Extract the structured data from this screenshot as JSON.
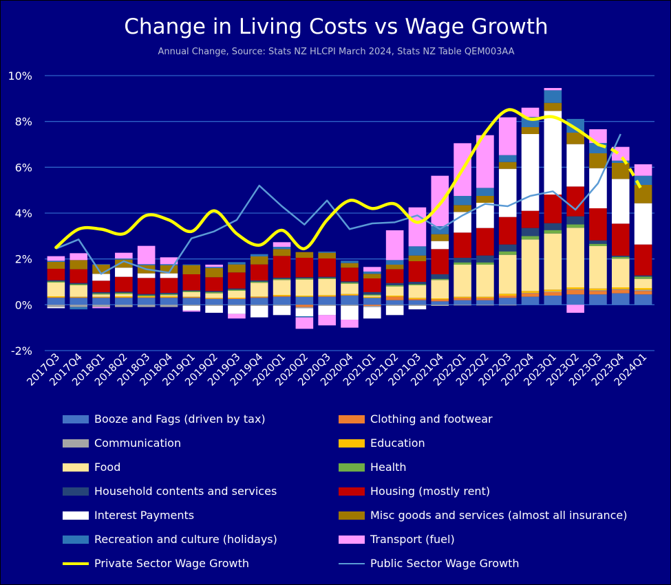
{
  "chart_data": {
    "type": "bar",
    "stacked": true,
    "title": "Change in Living Costs vs Wage Growth",
    "subtitle": "Annual Change, Source: Stats NZ HLCPI March 2024, Stats NZ Table QEM003AA",
    "xlabel": "",
    "ylabel": "",
    "ylim": [
      -2,
      10
    ],
    "y_ticks": [
      -2,
      0,
      2,
      4,
      6,
      8,
      10
    ],
    "y_tick_labels": [
      "-2%",
      "0%",
      "2%",
      "4%",
      "6%",
      "8%",
      "10%"
    ],
    "grid": true,
    "legend_position": "bottom",
    "categories": [
      "2017Q3",
      "2017Q4",
      "2018Q1",
      "2018Q2",
      "2018Q3",
      "2018Q4",
      "2019Q1",
      "2019Q2",
      "2019Q3",
      "2019Q4",
      "2020Q1",
      "2020Q2",
      "2020Q3",
      "2020Q4",
      "2021Q1",
      "2021Q2",
      "2021Q3",
      "2021Q4",
      "2022Q1",
      "2022Q2",
      "2022Q3",
      "2022Q4",
      "2023Q1",
      "2023Q2",
      "2023Q3",
      "2023Q4",
      "2024Q1"
    ],
    "series": [
      {
        "name": "Booze and Fags (driven by tax)",
        "color": "#4472c4",
        "values": [
          0.3,
          0.3,
          0.3,
          0.3,
          0.3,
          0.3,
          0.3,
          0.25,
          0.25,
          0.3,
          0.35,
          0.35,
          0.35,
          0.4,
          0.3,
          0.2,
          0.2,
          0.15,
          0.2,
          0.2,
          0.3,
          0.35,
          0.4,
          0.45,
          0.45,
          0.5,
          0.45
        ]
      },
      {
        "name": "Clothing and footwear",
        "color": "#ed7d31",
        "values": [
          0.02,
          0.02,
          0.02,
          0.02,
          0.02,
          0.02,
          0.02,
          0.02,
          0.03,
          0.03,
          0.03,
          -0.1,
          0.02,
          0.02,
          -0.05,
          0.15,
          0.05,
          0.08,
          0.1,
          0.1,
          0.1,
          0.15,
          0.15,
          0.2,
          0.15,
          0.15,
          0.15
        ]
      },
      {
        "name": "Communication",
        "color": "#a5a5a5",
        "values": [
          -0.1,
          -0.1,
          -0.1,
          -0.1,
          -0.1,
          -0.1,
          -0.05,
          -0.05,
          -0.05,
          -0.05,
          -0.05,
          -0.05,
          -0.05,
          -0.05,
          -0.05,
          -0.05,
          -0.05,
          -0.05,
          -0.03,
          -0.03,
          -0.03,
          0.02,
          0.03,
          0.03,
          0.03,
          0.03,
          0.05
        ]
      },
      {
        "name": "Education",
        "color": "#ffc000",
        "values": [
          0.05,
          0.03,
          0.03,
          0.05,
          0.05,
          0.05,
          0.03,
          0.03,
          0.03,
          0.03,
          0.05,
          0.05,
          0.05,
          0.05,
          0.05,
          0.05,
          0.05,
          0.05,
          0.05,
          0.05,
          0.08,
          0.08,
          0.08,
          0.08,
          0.08,
          0.08,
          0.08
        ]
      },
      {
        "name": "Food",
        "color": "#ffe699",
        "values": [
          0.6,
          0.5,
          0.1,
          0.1,
          0.0,
          0.05,
          0.2,
          0.2,
          0.3,
          0.6,
          0.65,
          0.7,
          0.7,
          0.45,
          0.05,
          0.4,
          0.55,
          0.8,
          1.4,
          1.4,
          1.7,
          2.25,
          2.45,
          2.6,
          1.85,
          1.25,
          0.4
        ]
      },
      {
        "name": "Health",
        "color": "#70ad47",
        "values": [
          0.05,
          0.05,
          0.05,
          0.05,
          0.05,
          0.05,
          0.05,
          0.05,
          0.05,
          0.05,
          0.05,
          0.05,
          0.05,
          0.05,
          0.05,
          0.05,
          0.05,
          0.05,
          0.1,
          0.1,
          0.15,
          0.15,
          0.15,
          0.15,
          0.1,
          0.08,
          0.1
        ]
      },
      {
        "name": "Household contents and services",
        "color": "#264478",
        "values": [
          0.05,
          0.05,
          0.05,
          0.05,
          0.05,
          0.05,
          0.03,
          0.05,
          0.05,
          0.05,
          0.05,
          0.05,
          0.05,
          0.05,
          0.1,
          0.1,
          0.1,
          0.2,
          0.2,
          0.3,
          0.3,
          0.35,
          0.3,
          0.35,
          0.15,
          0.05,
          0.05
        ]
      },
      {
        "name": "Housing (mostly rent)",
        "color": "#c00000",
        "values": [
          0.5,
          0.6,
          0.5,
          0.65,
          0.7,
          0.65,
          0.7,
          0.6,
          0.7,
          0.7,
          0.95,
          0.85,
          0.8,
          0.6,
          0.6,
          0.6,
          0.9,
          1.1,
          1.1,
          1.2,
          1.2,
          0.75,
          1.25,
          1.3,
          1.4,
          1.4,
          1.35
        ]
      },
      {
        "name": "Interest Payments",
        "color": "#ffffff",
        "values": [
          -0.05,
          0.0,
          0.3,
          0.4,
          0.2,
          0.2,
          -0.2,
          -0.3,
          -0.35,
          -0.5,
          -0.4,
          -0.35,
          -0.4,
          -0.6,
          -0.5,
          -0.4,
          -0.15,
          0.35,
          0.9,
          1.1,
          2.1,
          3.35,
          3.65,
          1.85,
          1.75,
          1.95,
          1.8
        ]
      },
      {
        "name": "Misc goods and services (almost all insurance)",
        "color": "#a07800",
        "values": [
          0.3,
          0.4,
          0.4,
          0.35,
          0.35,
          0.35,
          0.4,
          0.4,
          0.35,
          0.35,
          0.3,
          0.25,
          0.25,
          0.2,
          0.2,
          0.2,
          0.25,
          0.3,
          0.3,
          0.3,
          0.3,
          0.3,
          0.35,
          0.5,
          0.65,
          0.7,
          0.8
        ]
      },
      {
        "name": "Recreation and culture (holidays)",
        "color": "#2e75b6",
        "values": [
          0.05,
          -0.1,
          0.02,
          0.05,
          0.05,
          0.05,
          0.03,
          0.05,
          0.1,
          0.1,
          0.1,
          -0.05,
          0.05,
          0.1,
          0.1,
          0.2,
          0.4,
          0.35,
          0.4,
          0.35,
          0.3,
          0.45,
          0.55,
          0.6,
          0.45,
          0.1,
          0.4
        ]
      },
      {
        "name": "Transport (fuel)",
        "color": "#ff99ff",
        "values": [
          0.2,
          0.3,
          -0.05,
          0.25,
          0.8,
          0.3,
          -0.05,
          0.1,
          -0.2,
          0.0,
          0.2,
          -0.5,
          -0.45,
          -0.35,
          0.2,
          1.3,
          1.7,
          2.2,
          2.3,
          2.3,
          1.65,
          0.4,
          0.1,
          -0.35,
          0.6,
          0.6,
          0.5
        ]
      }
    ],
    "lines": [
      {
        "name": "Private Sector Wage Growth",
        "color": "#ffff00",
        "values": [
          2.5,
          3.3,
          3.3,
          3.1,
          3.9,
          3.7,
          3.2,
          4.1,
          3.1,
          2.6,
          3.25,
          2.45,
          3.7,
          4.55,
          4.2,
          4.4,
          3.6,
          4.4,
          5.9,
          7.5,
          8.5,
          8.1,
          8.2,
          7.7,
          7.0,
          6.5,
          4.9
        ],
        "dashed_last_segments": 2
      },
      {
        "name": "Public Sector Wage Growth",
        "color": "#5b9bd5",
        "values": [
          2.45,
          2.85,
          1.35,
          1.9,
          1.55,
          1.4,
          2.9,
          3.2,
          3.7,
          5.2,
          4.3,
          3.5,
          4.55,
          3.3,
          3.55,
          3.6,
          3.9,
          3.3,
          3.9,
          4.4,
          4.3,
          4.75,
          4.95,
          4.15,
          5.3,
          7.45,
          null
        ]
      }
    ]
  },
  "legend": [
    {
      "label": "Booze and Fags (driven by tax)",
      "kind": "bar",
      "color": "#4472c4"
    },
    {
      "label": "Clothing and footwear",
      "kind": "bar",
      "color": "#ed7d31"
    },
    {
      "label": "Communication",
      "kind": "bar",
      "color": "#a5a5a5"
    },
    {
      "label": "Education",
      "kind": "bar",
      "color": "#ffc000"
    },
    {
      "label": "Food",
      "kind": "bar",
      "color": "#ffe699"
    },
    {
      "label": "Health",
      "kind": "bar",
      "color": "#70ad47"
    },
    {
      "label": "Household contents and services",
      "kind": "bar",
      "color": "#264478"
    },
    {
      "label": "Housing (mostly rent)",
      "kind": "bar",
      "color": "#c00000"
    },
    {
      "label": "Interest Payments",
      "kind": "bar",
      "color": "#ffffff"
    },
    {
      "label": "Misc goods and services (almost all insurance)",
      "kind": "bar",
      "color": "#a07800"
    },
    {
      "label": "Recreation and culture (holidays)",
      "kind": "bar",
      "color": "#2e75b6"
    },
    {
      "label": "Transport (fuel)",
      "kind": "bar",
      "color": "#ff99ff"
    },
    {
      "label": "Private Sector Wage Growth",
      "kind": "thick-line",
      "color": "#ffff00"
    },
    {
      "label": "Public Sector Wage Growth",
      "kind": "line",
      "color": "#5b9bd5"
    }
  ]
}
